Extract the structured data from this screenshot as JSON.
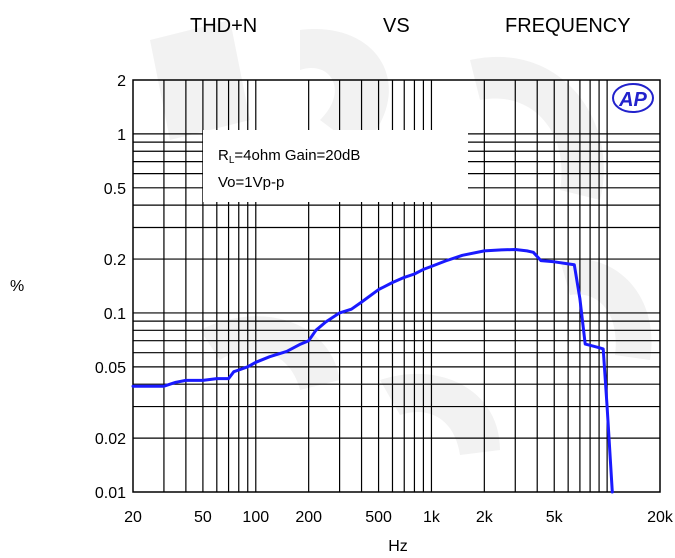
{
  "chart_data": {
    "type": "line",
    "title_parts": [
      "THD+N",
      "VS",
      "FREQUENCY"
    ],
    "xlabel": "Hz",
    "ylabel": "%",
    "x_scale": "log",
    "y_scale": "log",
    "xlim": [
      20,
      20000
    ],
    "ylim": [
      0.01,
      2
    ],
    "x_ticks": [
      {
        "value": 20,
        "label": "20"
      },
      {
        "value": 50,
        "label": "50"
      },
      {
        "value": 100,
        "label": "100"
      },
      {
        "value": 200,
        "label": "200"
      },
      {
        "value": 500,
        "label": "500"
      },
      {
        "value": 1000,
        "label": "1k"
      },
      {
        "value": 2000,
        "label": "2k"
      },
      {
        "value": 5000,
        "label": "5k"
      },
      {
        "value": 20000,
        "label": "20k"
      }
    ],
    "y_ticks": [
      {
        "value": 2,
        "label": "2"
      },
      {
        "value": 1,
        "label": "1"
      },
      {
        "value": 0.5,
        "label": "0.5"
      },
      {
        "value": 0.2,
        "label": "0.2"
      },
      {
        "value": 0.1,
        "label": "0.1"
      },
      {
        "value": 0.05,
        "label": "0.05"
      },
      {
        "value": 0.02,
        "label": "0.02"
      },
      {
        "value": 0.01,
        "label": "0.01"
      }
    ],
    "grid": true,
    "annotation": {
      "line1_main": "R",
      "line1_sub": "L",
      "line1_rest": "=4ohm Gain=20dB",
      "line2": "Vo=1Vp-p"
    },
    "logo_text": "AP",
    "series": [
      {
        "color": "#1a1aff",
        "points": [
          [
            20,
            0.039
          ],
          [
            25,
            0.039
          ],
          [
            30,
            0.039
          ],
          [
            35,
            0.041
          ],
          [
            40,
            0.042
          ],
          [
            50,
            0.042
          ],
          [
            60,
            0.043
          ],
          [
            70,
            0.043
          ],
          [
            75,
            0.047
          ],
          [
            80,
            0.048
          ],
          [
            90,
            0.05
          ],
          [
            100,
            0.053
          ],
          [
            120,
            0.057
          ],
          [
            150,
            0.061
          ],
          [
            180,
            0.067
          ],
          [
            200,
            0.07
          ],
          [
            220,
            0.08
          ],
          [
            250,
            0.089
          ],
          [
            300,
            0.1
          ],
          [
            350,
            0.105
          ],
          [
            400,
            0.115
          ],
          [
            500,
            0.135
          ],
          [
            600,
            0.148
          ],
          [
            700,
            0.158
          ],
          [
            800,
            0.165
          ],
          [
            900,
            0.175
          ],
          [
            1000,
            0.182
          ],
          [
            1200,
            0.195
          ],
          [
            1500,
            0.21
          ],
          [
            2000,
            0.222
          ],
          [
            2500,
            0.225
          ],
          [
            3000,
            0.226
          ],
          [
            3500,
            0.222
          ],
          [
            3800,
            0.218
          ],
          [
            4200,
            0.196
          ],
          [
            5000,
            0.193
          ],
          [
            6000,
            0.188
          ],
          [
            6500,
            0.186
          ],
          [
            7000,
            0.12
          ],
          [
            7500,
            0.067
          ],
          [
            8000,
            0.066
          ],
          [
            9000,
            0.064
          ],
          [
            9500,
            0.063
          ],
          [
            10000,
            0.03
          ],
          [
            10700,
            0.01
          ]
        ]
      }
    ]
  }
}
